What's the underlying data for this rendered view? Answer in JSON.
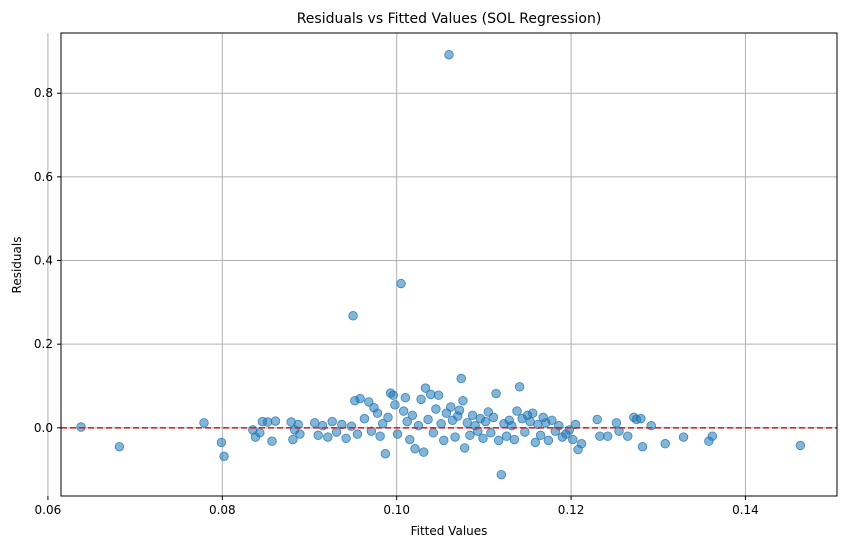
{
  "chart_data": {
    "type": "scatter",
    "title": "Residuals vs Fitted Values (SOL Regression)",
    "xlabel": "Fitted Values",
    "ylabel": "Residuals",
    "xlim": [
      0.0615,
      0.1505
    ],
    "ylim": [
      -0.163,
      0.944
    ],
    "xticks": [
      0.06,
      0.08,
      0.1,
      0.12,
      0.14
    ],
    "xtick_labels": [
      "0.06",
      "0.08",
      "0.10",
      "0.12",
      "0.14"
    ],
    "yticks": [
      0.0,
      0.2,
      0.4,
      0.6,
      0.8
    ],
    "ytick_labels": [
      "0.0",
      "0.2",
      "0.4",
      "0.6",
      "0.8"
    ],
    "grid": true,
    "legend": "none",
    "point_color": "#1f77b4",
    "point_alpha": 0.55,
    "reference_line": {
      "y": 0.0,
      "color": "#d62728",
      "style": "dashed"
    },
    "series": [
      {
        "points": [
          [
            0.0638,
            0.002
          ],
          [
            0.0682,
            -0.045
          ],
          [
            0.0779,
            0.012
          ],
          [
            0.0799,
            -0.035
          ],
          [
            0.0802,
            -0.068
          ],
          [
            0.0835,
            -0.005
          ],
          [
            0.0838,
            -0.022
          ],
          [
            0.0843,
            -0.012
          ],
          [
            0.0846,
            0.015
          ],
          [
            0.0852,
            0.014
          ],
          [
            0.0857,
            -0.032
          ],
          [
            0.0861,
            0.016
          ],
          [
            0.0879,
            0.014
          ],
          [
            0.0881,
            -0.028
          ],
          [
            0.0883,
            -0.005
          ],
          [
            0.0887,
            0.008
          ],
          [
            0.0889,
            -0.015
          ],
          [
            0.0906,
            0.012
          ],
          [
            0.091,
            -0.018
          ],
          [
            0.0915,
            0.005
          ],
          [
            0.0921,
            -0.022
          ],
          [
            0.0926,
            0.015
          ],
          [
            0.0931,
            -0.01
          ],
          [
            0.0937,
            0.008
          ],
          [
            0.0942,
            -0.025
          ],
          [
            0.0948,
            0.004
          ],
          [
            0.095,
            0.268
          ],
          [
            0.0952,
            0.065
          ],
          [
            0.0955,
            -0.015
          ],
          [
            0.0958,
            0.07
          ],
          [
            0.0963,
            0.022
          ],
          [
            0.0968,
            0.062
          ],
          [
            0.0971,
            -0.008
          ],
          [
            0.0974,
            0.048
          ],
          [
            0.0978,
            0.035
          ],
          [
            0.0981,
            -0.02
          ],
          [
            0.0984,
            0.01
          ],
          [
            0.0987,
            -0.062
          ],
          [
            0.099,
            0.025
          ],
          [
            0.0993,
            0.083
          ],
          [
            0.0996,
            0.078
          ],
          [
            0.0998,
            0.055
          ],
          [
            0.1001,
            -0.015
          ],
          [
            0.1005,
            0.345
          ],
          [
            0.1008,
            0.04
          ],
          [
            0.101,
            0.072
          ],
          [
            0.1012,
            0.015
          ],
          [
            0.1015,
            -0.028
          ],
          [
            0.1018,
            0.03
          ],
          [
            0.1021,
            -0.05
          ],
          [
            0.1025,
            0.005
          ],
          [
            0.1028,
            0.068
          ],
          [
            0.1031,
            -0.058
          ],
          [
            0.1033,
            0.095
          ],
          [
            0.1036,
            0.02
          ],
          [
            0.1039,
            0.08
          ],
          [
            0.1042,
            -0.012
          ],
          [
            0.1045,
            0.045
          ],
          [
            0.1048,
            0.078
          ],
          [
            0.1051,
            0.01
          ],
          [
            0.1054,
            -0.03
          ],
          [
            0.1057,
            0.035
          ],
          [
            0.106,
            0.892
          ],
          [
            0.1062,
            0.05
          ],
          [
            0.1064,
            0.018
          ],
          [
            0.1067,
            -0.022
          ],
          [
            0.107,
            0.028
          ],
          [
            0.1072,
            0.042
          ],
          [
            0.1074,
            0.118
          ],
          [
            0.1076,
            0.065
          ],
          [
            0.1078,
            -0.048
          ],
          [
            0.1081,
            0.012
          ],
          [
            0.1084,
            -0.018
          ],
          [
            0.1087,
            0.03
          ],
          [
            0.109,
            0.005
          ],
          [
            0.1093,
            -0.008
          ],
          [
            0.1096,
            0.022
          ],
          [
            0.1099,
            -0.025
          ],
          [
            0.1102,
            0.015
          ],
          [
            0.1105,
            0.038
          ],
          [
            0.1108,
            -0.012
          ],
          [
            0.1111,
            0.025
          ],
          [
            0.1114,
            0.082
          ],
          [
            0.1117,
            -0.03
          ],
          [
            0.112,
            -0.112
          ],
          [
            0.1123,
            0.01
          ],
          [
            0.1126,
            -0.02
          ],
          [
            0.1129,
            0.018
          ],
          [
            0.1132,
            0.005
          ],
          [
            0.1135,
            -0.028
          ],
          [
            0.1138,
            0.04
          ],
          [
            0.1141,
            0.098
          ],
          [
            0.1144,
            0.022
          ],
          [
            0.1147,
            -0.01
          ],
          [
            0.115,
            0.03
          ],
          [
            0.1153,
            0.015
          ],
          [
            0.1156,
            0.035
          ],
          [
            0.1159,
            -0.035
          ],
          [
            0.1162,
            0.008
          ],
          [
            0.1165,
            -0.018
          ],
          [
            0.1168,
            0.025
          ],
          [
            0.1171,
            0.012
          ],
          [
            0.1174,
            -0.03
          ],
          [
            0.1178,
            0.018
          ],
          [
            0.1182,
            -0.008
          ],
          [
            0.1186,
            0.005
          ],
          [
            0.119,
            -0.022
          ],
          [
            0.1194,
            -0.015
          ],
          [
            0.1198,
            -0.005
          ],
          [
            0.1202,
            -0.028
          ],
          [
            0.1205,
            0.008
          ],
          [
            0.1208,
            -0.052
          ],
          [
            0.1212,
            -0.038
          ],
          [
            0.123,
            0.02
          ],
          [
            0.1233,
            -0.02
          ],
          [
            0.1242,
            -0.02
          ],
          [
            0.1252,
            0.012
          ],
          [
            0.1255,
            -0.008
          ],
          [
            0.1265,
            -0.02
          ],
          [
            0.1272,
            0.025
          ],
          [
            0.1275,
            0.02
          ],
          [
            0.128,
            0.022
          ],
          [
            0.1282,
            -0.045
          ],
          [
            0.1292,
            0.005
          ],
          [
            0.1308,
            -0.038
          ],
          [
            0.1329,
            -0.022
          ],
          [
            0.1358,
            -0.032
          ],
          [
            0.1362,
            -0.02
          ],
          [
            0.1463,
            -0.042
          ]
        ]
      }
    ]
  }
}
